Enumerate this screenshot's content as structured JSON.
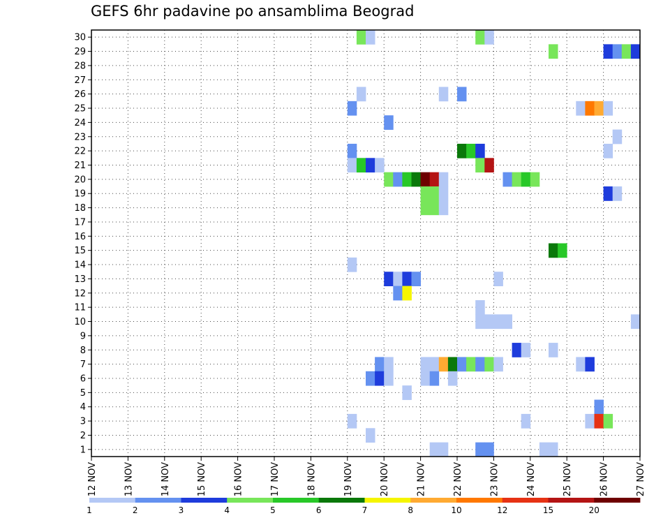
{
  "chart_data": {
    "type": "heatmap",
    "title": "GEFS 6hr padavine po ansamblima Beograd",
    "x_tick_labels": [
      "12 NOV",
      "13 NOV",
      "14 NOV",
      "15 NOV",
      "16 NOV",
      "17 NOV",
      "18 NOV",
      "19 NOV",
      "20 NOV",
      "21 NOV",
      "22 NOV",
      "23 NOV",
      "24 NOV",
      "25 NOV",
      "26 NOV",
      "27 NOV"
    ],
    "y_tick_labels": [
      "1",
      "2",
      "3",
      "4",
      "5",
      "6",
      "7",
      "8",
      "9",
      "10",
      "11",
      "12",
      "13",
      "14",
      "15",
      "16",
      "17",
      "18",
      "19",
      "20",
      "21",
      "22",
      "23",
      "24",
      "25",
      "26",
      "27",
      "28",
      "29",
      "30"
    ],
    "x_range_days": [
      12,
      27
    ],
    "y_range": [
      0.5,
      30.5
    ],
    "step_hours": 6,
    "grid": true,
    "legend_position": "bottom",
    "legend_ticks": [
      "1",
      "2",
      "3",
      "4",
      "5",
      "6",
      "7",
      "8",
      "10",
      "12",
      "15",
      "20"
    ],
    "legend_colors": [
      "#b4c8f5",
      "#6491f0",
      "#1e3cdc",
      "#78e65a",
      "#28c828",
      "#0a780a",
      "#f5f500",
      "#ffaa32",
      "#ff7800",
      "#e63214",
      "#b41414",
      "#6e0000"
    ],
    "cells": [
      {
        "member": 30,
        "day": 19.25,
        "level": 4
      },
      {
        "member": 30,
        "day": 19.5,
        "level": 1
      },
      {
        "member": 30,
        "day": 22.5,
        "level": 4
      },
      {
        "member": 30,
        "day": 22.75,
        "level": 1
      },
      {
        "member": 29,
        "day": 24.5,
        "level": 4
      },
      {
        "member": 29,
        "day": 26.0,
        "level": 3
      },
      {
        "member": 29,
        "day": 26.25,
        "level": 2
      },
      {
        "member": 29,
        "day": 26.5,
        "level": 4
      },
      {
        "member": 29,
        "day": 26.75,
        "level": 3
      },
      {
        "member": 26,
        "day": 19.25,
        "level": 1
      },
      {
        "member": 26,
        "day": 21.5,
        "level": 1
      },
      {
        "member": 26,
        "day": 22.0,
        "level": 2
      },
      {
        "member": 25,
        "day": 19.0,
        "level": 2
      },
      {
        "member": 25,
        "day": 25.25,
        "level": 1
      },
      {
        "member": 25,
        "day": 25.5,
        "level": 9
      },
      {
        "member": 25,
        "day": 25.75,
        "level": 8
      },
      {
        "member": 25,
        "day": 26.0,
        "level": 1
      },
      {
        "member": 24,
        "day": 20.0,
        "level": 2
      },
      {
        "member": 23,
        "day": 26.25,
        "level": 1
      },
      {
        "member": 22,
        "day": 19.0,
        "level": 2
      },
      {
        "member": 22,
        "day": 22.0,
        "level": 6
      },
      {
        "member": 22,
        "day": 22.25,
        "level": 5
      },
      {
        "member": 22,
        "day": 22.5,
        "level": 3
      },
      {
        "member": 22,
        "day": 26.0,
        "level": 1
      },
      {
        "member": 21,
        "day": 19.0,
        "level": 1
      },
      {
        "member": 21,
        "day": 19.25,
        "level": 5
      },
      {
        "member": 21,
        "day": 19.5,
        "level": 3
      },
      {
        "member": 21,
        "day": 19.75,
        "level": 1
      },
      {
        "member": 21,
        "day": 22.5,
        "level": 4
      },
      {
        "member": 21,
        "day": 22.75,
        "level": 11
      },
      {
        "member": 20,
        "day": 20.0,
        "level": 4
      },
      {
        "member": 20,
        "day": 20.25,
        "level": 2
      },
      {
        "member": 20,
        "day": 20.5,
        "level": 5
      },
      {
        "member": 20,
        "day": 20.75,
        "level": 6
      },
      {
        "member": 20,
        "day": 21.0,
        "level": 12
      },
      {
        "member": 20,
        "day": 21.25,
        "level": 11
      },
      {
        "member": 20,
        "day": 21.5,
        "level": 1
      },
      {
        "member": 20,
        "day": 23.25,
        "level": 2
      },
      {
        "member": 20,
        "day": 23.5,
        "level": 4
      },
      {
        "member": 20,
        "day": 23.75,
        "level": 5
      },
      {
        "member": 20,
        "day": 24.0,
        "level": 4
      },
      {
        "member": 19,
        "day": 21.0,
        "level": 4
      },
      {
        "member": 19,
        "day": 21.25,
        "level": 4
      },
      {
        "member": 19,
        "day": 21.5,
        "level": 1
      },
      {
        "member": 19,
        "day": 26.0,
        "level": 3
      },
      {
        "member": 19,
        "day": 26.25,
        "level": 1
      },
      {
        "member": 18,
        "day": 21.0,
        "level": 4
      },
      {
        "member": 18,
        "day": 21.25,
        "level": 4
      },
      {
        "member": 18,
        "day": 21.5,
        "level": 1
      },
      {
        "member": 15,
        "day": 24.5,
        "level": 6
      },
      {
        "member": 15,
        "day": 24.75,
        "level": 5
      },
      {
        "member": 14,
        "day": 19.0,
        "level": 1
      },
      {
        "member": 13,
        "day": 20.0,
        "level": 3
      },
      {
        "member": 13,
        "day": 20.25,
        "level": 1
      },
      {
        "member": 13,
        "day": 20.5,
        "level": 3
      },
      {
        "member": 13,
        "day": 20.75,
        "level": 2
      },
      {
        "member": 13,
        "day": 23.0,
        "level": 1
      },
      {
        "member": 12,
        "day": 20.25,
        "level": 2
      },
      {
        "member": 12,
        "day": 20.5,
        "level": 7
      },
      {
        "member": 11,
        "day": 22.5,
        "level": 1
      },
      {
        "member": 10,
        "day": 22.5,
        "level": 1
      },
      {
        "member": 10,
        "day": 22.75,
        "level": 1
      },
      {
        "member": 10,
        "day": 23.0,
        "level": 1
      },
      {
        "member": 10,
        "day": 23.25,
        "level": 1
      },
      {
        "member": 10,
        "day": 26.75,
        "level": 1
      },
      {
        "member": 8,
        "day": 23.5,
        "level": 3
      },
      {
        "member": 8,
        "day": 23.75,
        "level": 1
      },
      {
        "member": 8,
        "day": 24.5,
        "level": 1
      },
      {
        "member": 7,
        "day": 19.75,
        "level": 2
      },
      {
        "member": 7,
        "day": 20.0,
        "level": 1
      },
      {
        "member": 7,
        "day": 21.0,
        "level": 1
      },
      {
        "member": 7,
        "day": 21.25,
        "level": 1
      },
      {
        "member": 7,
        "day": 21.5,
        "level": 8
      },
      {
        "member": 7,
        "day": 21.75,
        "level": 6
      },
      {
        "member": 7,
        "day": 22.0,
        "level": 2
      },
      {
        "member": 7,
        "day": 22.25,
        "level": 4
      },
      {
        "member": 7,
        "day": 22.5,
        "level": 2
      },
      {
        "member": 7,
        "day": 22.75,
        "level": 4
      },
      {
        "member": 7,
        "day": 23.0,
        "level": 1
      },
      {
        "member": 7,
        "day": 25.25,
        "level": 1
      },
      {
        "member": 7,
        "day": 25.5,
        "level": 3
      },
      {
        "member": 6,
        "day": 19.5,
        "level": 2
      },
      {
        "member": 6,
        "day": 19.75,
        "level": 3
      },
      {
        "member": 6,
        "day": 20.0,
        "level": 1
      },
      {
        "member": 6,
        "day": 21.0,
        "level": 1
      },
      {
        "member": 6,
        "day": 21.25,
        "level": 2
      },
      {
        "member": 6,
        "day": 21.75,
        "level": 1
      },
      {
        "member": 5,
        "day": 20.5,
        "level": 1
      },
      {
        "member": 4,
        "day": 25.75,
        "level": 2
      },
      {
        "member": 3,
        "day": 19.0,
        "level": 1
      },
      {
        "member": 3,
        "day": 23.75,
        "level": 1
      },
      {
        "member": 3,
        "day": 25.5,
        "level": 1
      },
      {
        "member": 3,
        "day": 25.75,
        "level": 10
      },
      {
        "member": 3,
        "day": 26.0,
        "level": 4
      },
      {
        "member": 2,
        "day": 19.5,
        "level": 1
      },
      {
        "member": 1,
        "day": 21.25,
        "level": 1
      },
      {
        "member": 1,
        "day": 21.5,
        "level": 1
      },
      {
        "member": 1,
        "day": 22.5,
        "level": 2
      },
      {
        "member": 1,
        "day": 22.75,
        "level": 2
      },
      {
        "member": 1,
        "day": 24.25,
        "level": 1
      },
      {
        "member": 1,
        "day": 24.5,
        "level": 1
      }
    ]
  }
}
